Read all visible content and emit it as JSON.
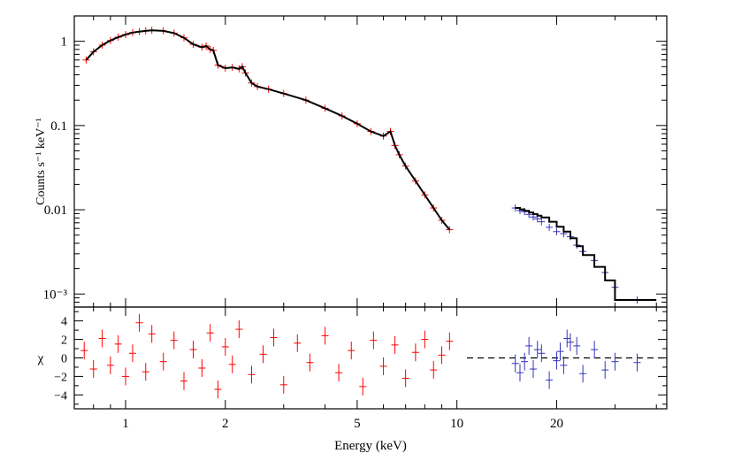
{
  "chart_data": [
    {
      "type": "scatter",
      "panel": "spectrum",
      "xlabel": "Energy (keV)",
      "ylabel": "Counts s⁻¹ keV⁻¹",
      "xscale": "log",
      "yscale": "log",
      "xlim": [
        0.7,
        43
      ],
      "ylim": [
        0.0007,
        2
      ],
      "x_ticks": [
        {
          "value": 1,
          "label": "1"
        },
        {
          "value": 2,
          "label": "2"
        },
        {
          "value": 5,
          "label": "5"
        },
        {
          "value": 10,
          "label": "10"
        },
        {
          "value": 20,
          "label": "20"
        }
      ],
      "y_ticks": [
        {
          "value": 1,
          "label": "1"
        },
        {
          "value": 0.1,
          "label": "0.1"
        },
        {
          "value": 0.01,
          "label": "0.01"
        },
        {
          "value": 0.001,
          "label": "10⁻³"
        }
      ],
      "colors": {
        "soft": "#ff0000",
        "hard": "#3333bb",
        "model": "#000000"
      },
      "series": [
        {
          "color": "#ff0000",
          "x": [
            0.76,
            0.8,
            0.85,
            0.9,
            0.95,
            1.0,
            1.05,
            1.1,
            1.15,
            1.2,
            1.3,
            1.4,
            1.5,
            1.6,
            1.7,
            1.75,
            1.8,
            1.84,
            1.9,
            2.0,
            2.1,
            2.2,
            2.25,
            2.3,
            2.4,
            2.5,
            2.7,
            3.0,
            3.5,
            4.0,
            4.5,
            5.0,
            5.5,
            6.0,
            6.3,
            6.5,
            6.7,
            7.0,
            7.5,
            8.0,
            8.5,
            9.0,
            9.5
          ],
          "y": [
            0.6,
            0.75,
            0.9,
            1.02,
            1.12,
            1.2,
            1.27,
            1.3,
            1.33,
            1.35,
            1.33,
            1.25,
            1.1,
            0.92,
            0.85,
            0.88,
            0.8,
            0.78,
            0.52,
            0.48,
            0.49,
            0.47,
            0.5,
            0.42,
            0.32,
            0.29,
            0.27,
            0.24,
            0.2,
            0.16,
            0.13,
            0.105,
            0.085,
            0.075,
            0.085,
            0.058,
            0.045,
            0.033,
            0.022,
            0.015,
            0.0105,
            0.0075,
            0.0058
          ]
        },
        {
          "color": "#3333bb",
          "x": [
            15,
            15.5,
            16,
            16.5,
            17,
            17.5,
            18,
            19,
            20,
            21,
            22,
            23,
            24,
            26,
            28,
            30,
            35
          ],
          "y": [
            0.0105,
            0.0098,
            0.0095,
            0.0088,
            0.0082,
            0.0078,
            0.0072,
            0.0062,
            0.0055,
            0.0052,
            0.0048,
            0.0038,
            0.0032,
            0.0025,
            0.0018,
            0.0012,
            0.00085
          ]
        }
      ],
      "model_steps": [
        {
          "x": 15,
          "y": 0.0105
        },
        {
          "x": 15.5,
          "y": 0.0101
        },
        {
          "x": 16,
          "y": 0.0097
        },
        {
          "x": 16.5,
          "y": 0.0093
        },
        {
          "x": 17,
          "y": 0.0089
        },
        {
          "x": 17.5,
          "y": 0.0085
        },
        {
          "x": 18,
          "y": 0.0081
        },
        {
          "x": 19,
          "y": 0.0072
        },
        {
          "x": 20,
          "y": 0.0063
        },
        {
          "x": 21,
          "y": 0.0055
        },
        {
          "x": 22,
          "y": 0.0046
        },
        {
          "x": 23,
          "y": 0.0037
        },
        {
          "x": 24,
          "y": 0.0029
        },
        {
          "x": 26,
          "y": 0.0021
        },
        {
          "x": 28,
          "y": 0.00145
        },
        {
          "x": 30,
          "y": 0.00085
        },
        {
          "x": 40,
          "y": 0.00085
        }
      ]
    },
    {
      "type": "scatter",
      "panel": "residuals",
      "xlabel": "Energy (keV)",
      "ylabel": "χ",
      "xscale": "log",
      "xlim": [
        0.7,
        43
      ],
      "ylim": [
        -5.5,
        5.5
      ],
      "y_ticks": [
        {
          "value": 4,
          "label": "4"
        },
        {
          "value": 2,
          "label": "2"
        },
        {
          "value": 0,
          "label": "0"
        },
        {
          "value": -2,
          "label": "−2"
        },
        {
          "value": -4,
          "label": "−4"
        }
      ],
      "reference_line": 0,
      "series": [
        {
          "color": "#ff0000",
          "x": [
            0.75,
            0.8,
            0.85,
            0.9,
            0.95,
            1.0,
            1.05,
            1.1,
            1.15,
            1.2,
            1.3,
            1.4,
            1.5,
            1.6,
            1.7,
            1.8,
            1.9,
            2.0,
            2.1,
            2.2,
            2.4,
            2.6,
            2.8,
            3.0,
            3.3,
            3.6,
            4.0,
            4.4,
            4.8,
            5.2,
            5.6,
            6.0,
            6.5,
            7.0,
            7.5,
            8.0,
            8.5,
            9.0,
            9.5
          ],
          "y": [
            0.8,
            -1.2,
            2.1,
            -0.8,
            1.5,
            -2.0,
            0.5,
            3.8,
            -1.5,
            2.6,
            -0.4,
            1.9,
            -2.5,
            0.9,
            -1.1,
            2.7,
            -3.4,
            1.2,
            -0.7,
            3.1,
            -1.8,
            0.4,
            2.2,
            -2.9,
            1.6,
            -0.5,
            2.4,
            -1.6,
            0.8,
            -3.1,
            1.9,
            -0.9,
            1.4,
            -2.2,
            0.6,
            2.0,
            -1.3,
            0.3,
            1.8
          ]
        },
        {
          "color": "#3333bb",
          "x": [
            15,
            15.5,
            16,
            16.5,
            17,
            17.5,
            18,
            19,
            20,
            20.5,
            21,
            21.5,
            22,
            23,
            24,
            26,
            28,
            30,
            35
          ],
          "y": [
            -0.6,
            -1.6,
            -0.4,
            1.3,
            -1.2,
            0.9,
            0.5,
            -2.4,
            -0.3,
            0.7,
            -0.8,
            2.1,
            1.7,
            1.3,
            -1.7,
            0.9,
            -1.3,
            -0.4,
            -0.5
          ]
        }
      ]
    }
  ]
}
